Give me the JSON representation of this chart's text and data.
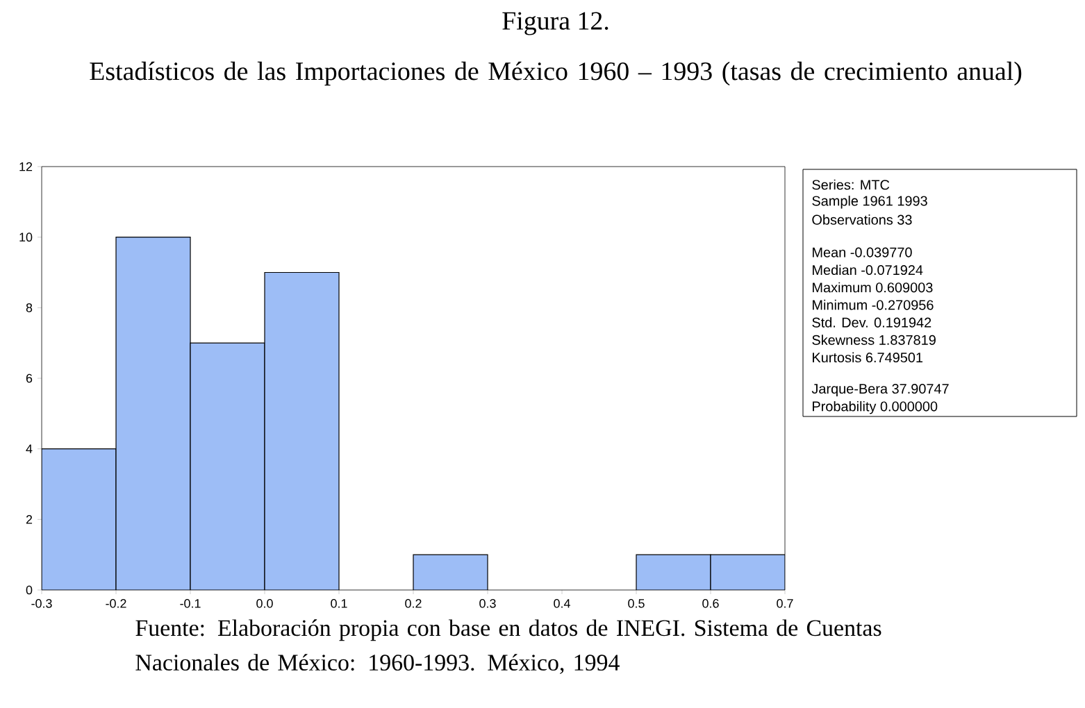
{
  "chart_data": {
    "type": "histogram",
    "title": "Figura 12.",
    "subtitle": "Estadísticos de las Importaciones de México 1960 – 1993 (tasas de crecimiento anual)",
    "bins": [
      -0.3,
      -0.2,
      -0.1,
      0.0,
      0.1,
      0.2,
      0.3,
      0.4,
      0.5,
      0.6,
      0.7
    ],
    "values": [
      4,
      10,
      7,
      9,
      0,
      1,
      0,
      0,
      1,
      1
    ],
    "color": "#9dbdf6",
    "xlim": [
      -0.3,
      0.7
    ],
    "xticks": [
      -0.3,
      -0.2,
      -0.1,
      {
        "value": 0,
        "label": "0.0"
      },
      0.1,
      0.2,
      0.3,
      0.4,
      0.5,
      0.6,
      0.7
    ],
    "ylim": [
      0,
      12
    ],
    "yticks": [
      0,
      2,
      4,
      6,
      8,
      10,
      12
    ],
    "annotations": [
      "Series: MTC",
      "Sample 1961 1993",
      "Observations 33",
      "Mean -0.039770",
      "Median -0.071924",
      "Maximum 0.609003",
      "Minimum -0.270956",
      "Std. Dev. 0.191942",
      "Skewness 1.837819",
      "Kurtosis 6.749501",
      "Jarque-Bera 37.90747",
      "Probability 0.000000",
      "Fuente: Elaboración propia con base en datos de INEGI. Sistema de Cuentas Nacionales de México: 1960-1993. México, 1994"
    ]
  }
}
